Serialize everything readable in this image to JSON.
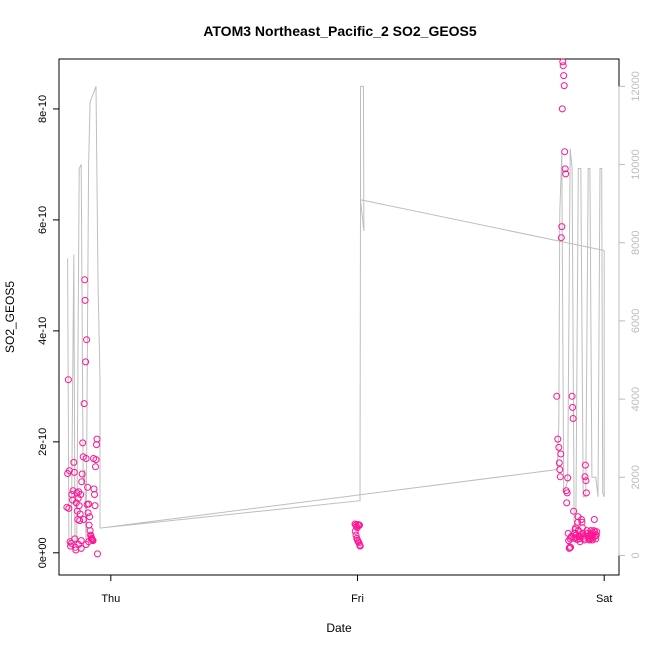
{
  "chart_data": {
    "type": "scatter",
    "title": "ATOM3 Northeast_Pacific_2 SO2_GEOS5",
    "xlabel": "Date",
    "ylabel": "SO2_GEOS5",
    "x_ticks": [
      {
        "label": "Thu",
        "value": 0
      },
      {
        "label": "Fri",
        "value": 1
      },
      {
        "label": "Sat",
        "value": 2
      }
    ],
    "x_range": [
      -0.21,
      2.06
    ],
    "ylim": [
      -4e-11,
      8.9e-10
    ],
    "y_ticks": [
      {
        "label": "0e+00",
        "value": 0
      },
      {
        "label": "2e-10",
        "value": 2e-10
      },
      {
        "label": "4e-10",
        "value": 4e-10
      },
      {
        "label": "6e-10",
        "value": 6e-10
      },
      {
        "label": "8e-10",
        "value": 8e-10
      }
    ],
    "y2_range": [
      -500,
      12700
    ],
    "y2_ticks": [
      {
        "label": "0",
        "value": 0
      },
      {
        "label": "2000",
        "value": 2000
      },
      {
        "label": "4000",
        "value": 4000
      },
      {
        "label": "6000",
        "value": 6000
      },
      {
        "label": "8000",
        "value": 8000
      },
      {
        "label": "10000",
        "value": 10000
      },
      {
        "label": "12000",
        "value": 12000
      }
    ],
    "grid": false,
    "colors": {
      "points": "#ff1493",
      "altitude_line": "#bebebe"
    },
    "series": [
      {
        "axis": "left",
        "style": "points",
        "points": [
          [
            -0.172,
            3.12e-10
          ],
          [
            -0.175,
            1.43e-10
          ],
          [
            -0.178,
            8.2e-11
          ],
          [
            -0.17,
            8e-11
          ],
          [
            -0.168,
            1.48e-10
          ],
          [
            -0.165,
            2e-11
          ],
          [
            -0.163,
            1.2e-11
          ],
          [
            -0.16,
            1.7e-11
          ],
          [
            -0.158,
            1.05e-10
          ],
          [
            -0.155,
            9.5e-11
          ],
          [
            -0.153,
            1.12e-10
          ],
          [
            -0.15,
            1.63e-10
          ],
          [
            -0.148,
            1.45e-10
          ],
          [
            -0.146,
            2.5e-11
          ],
          [
            -0.144,
            1e-11
          ],
          [
            -0.142,
            5e-12
          ],
          [
            -0.14,
            9e-11
          ],
          [
            -0.138,
            1.08e-10
          ],
          [
            -0.136,
            7.5e-11
          ],
          [
            -0.134,
            6e-11
          ],
          [
            -0.132,
            9.8e-11
          ],
          [
            -0.13,
            1.1e-10
          ],
          [
            -0.128,
            8.5e-11
          ],
          [
            -0.126,
            5.8e-11
          ],
          [
            -0.124,
            7e-11
          ],
          [
            -0.122,
            1.05e-10
          ],
          [
            -0.12,
            2.2e-11
          ],
          [
            -0.118,
            1.28e-10
          ],
          [
            -0.116,
            1.42e-10
          ],
          [
            -0.114,
            1.98e-10
          ],
          [
            -0.112,
            1.73e-10
          ],
          [
            -0.11,
            6e-11
          ],
          [
            -0.108,
            2.69e-10
          ],
          [
            -0.106,
            4.92e-10
          ],
          [
            -0.104,
            4.55e-10
          ],
          [
            -0.102,
            3.44e-10
          ],
          [
            -0.1,
            1.7e-10
          ],
          [
            -0.098,
            3.84e-10
          ],
          [
            -0.096,
            8.7e-11
          ],
          [
            -0.094,
            1.18e-10
          ],
          [
            -0.092,
            7.2e-11
          ],
          [
            -0.09,
            8.8e-11
          ],
          [
            -0.088,
            5e-11
          ],
          [
            -0.086,
            6.5e-11
          ],
          [
            -0.084,
            4e-11
          ],
          [
            -0.082,
            3.2e-11
          ],
          [
            -0.08,
            2.9e-11
          ],
          [
            -0.078,
            2.6e-11
          ],
          [
            -0.076,
            2.4e-11
          ],
          [
            -0.074,
            2.3e-11
          ],
          [
            -0.072,
            2.2e-11
          ],
          [
            -0.07,
            1.7e-10
          ],
          [
            -0.068,
            1.15e-10
          ],
          [
            -0.066,
            1.05e-10
          ],
          [
            -0.064,
            8.5e-11
          ],
          [
            -0.062,
            1.55e-10
          ],
          [
            -0.06,
            1.68e-10
          ],
          [
            -0.058,
            1.95e-10
          ],
          [
            -0.056,
            2.05e-10
          ],
          [
            -0.054,
            -2e-12
          ],
          [
            -0.13,
            1.5e-11
          ],
          [
            -0.12,
            8e-12
          ],
          [
            -0.1,
            1.5e-11
          ],
          [
            -0.09,
            2e-11
          ],
          [
            -0.08,
            2.5e-11
          ],
          [
            0.99,
            5.2e-11
          ],
          [
            0.993,
            5e-11
          ],
          [
            0.996,
            4.7e-11
          ],
          [
            0.999,
            4.5e-11
          ],
          [
            1.002,
            5.1e-11
          ],
          [
            1.005,
            4.9e-11
          ],
          [
            1.008,
            5e-11
          ],
          [
            0.991,
            3.9e-11
          ],
          [
            0.994,
            3.2e-11
          ],
          [
            0.997,
            2.6e-11
          ],
          [
            1.0,
            2.3e-11
          ],
          [
            1.003,
            2e-11
          ],
          [
            1.006,
            1.8e-11
          ],
          [
            1.009,
            1.4e-11
          ],
          [
            1.011,
            1.2e-11
          ],
          [
            1.808,
            2.82e-10
          ],
          [
            1.812,
            2.05e-10
          ],
          [
            1.816,
            1.9e-10
          ],
          [
            1.818,
            1.62e-10
          ],
          [
            1.82,
            1.5e-10
          ],
          [
            1.822,
            1.37e-10
          ],
          [
            1.824,
            1.78e-10
          ],
          [
            1.826,
            5.68e-10
          ],
          [
            1.828,
            5.88e-10
          ],
          [
            1.83,
            8e-10
          ],
          [
            1.832,
            8.85e-10
          ],
          [
            1.834,
            8.78e-10
          ],
          [
            1.836,
            8.6e-10
          ],
          [
            1.838,
            8.42e-10
          ],
          [
            1.84,
            7.23e-10
          ],
          [
            1.842,
            6.92e-10
          ],
          [
            1.844,
            6.83e-10
          ],
          [
            1.846,
            1.12e-10
          ],
          [
            1.848,
            9e-11
          ],
          [
            1.85,
            1.08e-10
          ],
          [
            1.852,
            1.35e-10
          ],
          [
            1.854,
            3.5e-11
          ],
          [
            1.856,
            2.2e-11
          ],
          [
            1.858,
            8e-12
          ],
          [
            1.86,
            1e-11
          ],
          [
            1.862,
            2.5e-11
          ],
          [
            1.864,
            1e-11
          ],
          [
            1.866,
            2.8e-11
          ],
          [
            1.868,
            3e-11
          ],
          [
            1.87,
            2.82e-10
          ],
          [
            1.872,
            2.62e-10
          ],
          [
            1.874,
            2.42e-10
          ],
          [
            1.876,
            7.5e-11
          ],
          [
            1.878,
            2.6e-11
          ],
          [
            1.88,
            3.5e-11
          ],
          [
            1.882,
            4.2e-11
          ],
          [
            1.884,
            4.5e-11
          ],
          [
            1.886,
            3.2e-11
          ],
          [
            1.888,
            2.8e-11
          ],
          [
            1.89,
            2.4e-11
          ],
          [
            1.892,
            5.5e-11
          ],
          [
            1.894,
            6.5e-11
          ],
          [
            1.896,
            4e-11
          ],
          [
            1.898,
            3e-11
          ],
          [
            1.9,
            2.5e-11
          ],
          [
            1.902,
            2e-11
          ],
          [
            1.904,
            2.9e-11
          ],
          [
            1.906,
            3.3e-11
          ],
          [
            1.908,
            6e-11
          ],
          [
            1.91,
            5.5e-11
          ],
          [
            1.912,
            4.5e-11
          ],
          [
            1.914,
            3.5e-11
          ],
          [
            1.916,
            3e-11
          ],
          [
            1.918,
            2.6e-11
          ],
          [
            1.92,
            2.3e-11
          ],
          [
            1.922,
            1.37e-10
          ],
          [
            1.924,
            1.58e-10
          ],
          [
            1.926,
            1.3e-10
          ],
          [
            1.928,
            1.08e-10
          ],
          [
            1.93,
            4e-11
          ],
          [
            1.932,
            3.5e-11
          ],
          [
            1.934,
            3e-11
          ],
          [
            1.936,
            2.7e-11
          ],
          [
            1.938,
            2.5e-11
          ],
          [
            1.94,
            2.3e-11
          ],
          [
            1.942,
            3e-11
          ],
          [
            1.944,
            3.4e-11
          ],
          [
            1.946,
            4e-11
          ],
          [
            1.948,
            3.2e-11
          ],
          [
            1.95,
            2.6e-11
          ],
          [
            1.952,
            2.3e-11
          ],
          [
            1.954,
            2.9e-11
          ],
          [
            1.956,
            3.5e-11
          ],
          [
            1.958,
            4e-11
          ],
          [
            1.96,
            6e-11
          ],
          [
            1.962,
            3.8e-11
          ],
          [
            1.964,
            3e-11
          ],
          [
            1.966,
            2.5e-11
          ],
          [
            1.968,
            3.2e-11
          ],
          [
            1.97,
            3.8e-11
          ]
        ]
      },
      {
        "axis": "right",
        "style": "line",
        "points": [
          [
            -0.175,
            7600
          ],
          [
            -0.17,
            400
          ],
          [
            -0.16,
            300
          ],
          [
            -0.15,
            7700
          ],
          [
            -0.145,
            300
          ],
          [
            -0.138,
            400
          ],
          [
            -0.128,
            9900
          ],
          [
            -0.12,
            10000
          ],
          [
            -0.112,
            1800
          ],
          [
            -0.106,
            2200
          ],
          [
            -0.1,
            300
          ],
          [
            -0.09,
            10000
          ],
          [
            -0.084,
            11600
          ],
          [
            -0.06,
            12000
          ],
          [
            -0.052,
            7000
          ],
          [
            -0.044,
            4500
          ],
          [
            -0.044,
            700
          ],
          [
            1.01,
            1400
          ],
          [
            1.012,
            9000
          ],
          [
            1.012,
            12000
          ],
          [
            1.024,
            12000
          ],
          [
            1.026,
            8300
          ],
          [
            1.012,
            9100
          ],
          [
            2.0,
            7800
          ],
          [
            2.0,
            1500
          ],
          [
            1.994,
            1600
          ],
          [
            1.99,
            9900
          ],
          [
            1.983,
            9900
          ],
          [
            1.975,
            1500
          ],
          [
            1.966,
            2000
          ],
          [
            1.95,
            2000
          ],
          [
            1.942,
            9900
          ],
          [
            1.935,
            9900
          ],
          [
            1.925,
            1500
          ],
          [
            1.915,
            1500
          ],
          [
            1.905,
            9900
          ],
          [
            1.895,
            9900
          ],
          [
            1.885,
            600
          ],
          [
            1.878,
            900
          ],
          [
            1.87,
            9900
          ],
          [
            1.862,
            10400
          ],
          [
            1.852,
            1900
          ],
          [
            1.836,
            1600
          ],
          [
            1.828,
            10300
          ],
          [
            1.82,
            8800
          ],
          [
            1.816,
            3300
          ],
          [
            1.812,
            2600
          ],
          [
            1.81,
            2200
          ],
          [
            -0.044,
            700
          ]
        ]
      }
    ]
  }
}
